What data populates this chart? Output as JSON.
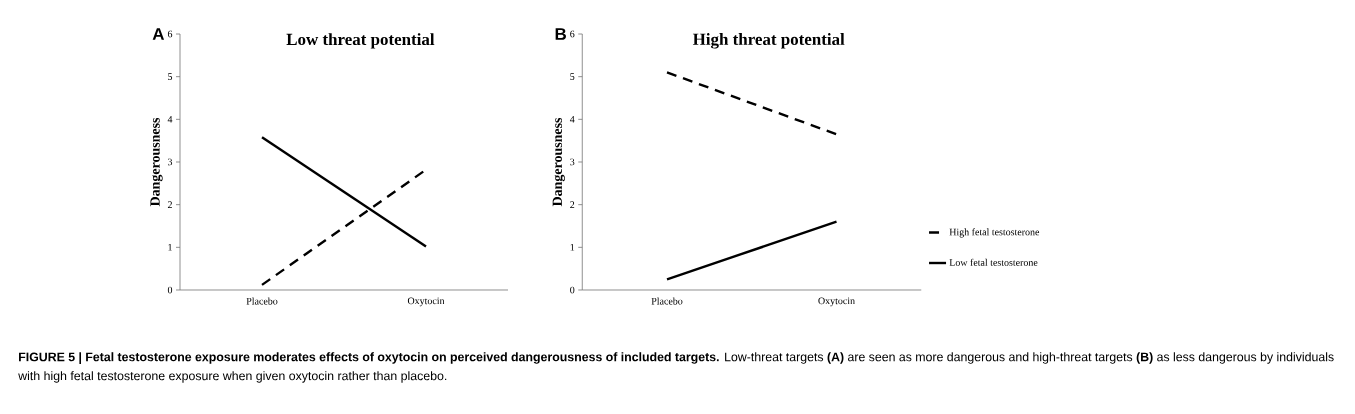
{
  "chart_data": [
    {
      "type": "line",
      "title": "Low threat potential",
      "ylabel": "Dangerousness",
      "categories": [
        "Placebo",
        "Oxytocin"
      ],
      "ylim": [
        0,
        6
      ],
      "yticks": [
        0,
        1,
        2,
        3,
        4,
        5,
        6
      ],
      "grid": false,
      "marker": "none",
      "annotations": [
        "A"
      ],
      "series": [
        {
          "color": "#000000",
          "line_style": "dashed",
          "values": [
            0.12,
            2.82
          ]
        },
        {
          "color": "#000000",
          "line_style": "solid",
          "values": [
            3.58,
            1.02
          ]
        }
      ]
    },
    {
      "type": "line",
      "title": "High threat potential",
      "ylabel": "Dangerousness",
      "categories": [
        "Placebo",
        "Oxytocin"
      ],
      "ylim": [
        0,
        6
      ],
      "yticks": [
        0,
        1,
        2,
        3,
        4,
        5,
        6
      ],
      "grid": false,
      "marker": "none",
      "legend": "right",
      "annotations": [
        "B",
        "**FIGURE 5 | Fetal testosterone exposure moderates effects of oxytocin on perceived dangerousness of included targets.** Low-threat targets **(A)** are seen as more dangerous and high-threat targets **(B)** as less dangerous by individuals with high fetal testosterone exposure when given oxytocin rather than placebo."
      ],
      "series": [
        {
          "name": "High fetal testosterone",
          "color": "#000000",
          "line_style": "dashed",
          "values": [
            5.1,
            3.65
          ]
        },
        {
          "name": "Low fetal testosterone",
          "color": "#000000",
          "line_style": "solid",
          "values": [
            0.25,
            1.6
          ]
        }
      ]
    }
  ]
}
